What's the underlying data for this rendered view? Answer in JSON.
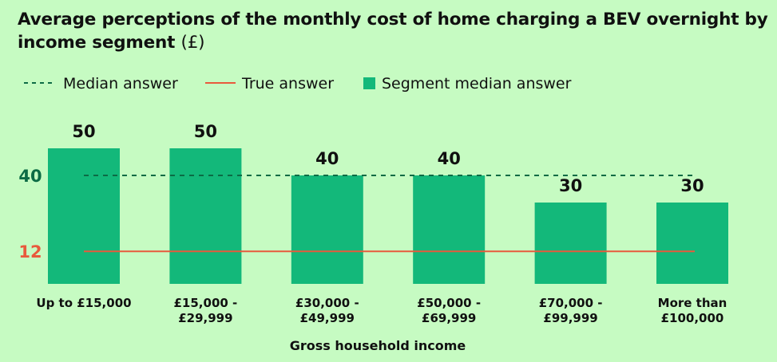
{
  "title": "Average perceptions of the monthly cost of home charging a BEV overnight by income segment",
  "title_unit": "(£)",
  "legend": {
    "median_label": "Median answer",
    "true_label": "True answer",
    "segment_label": "Segment median answer"
  },
  "colors": {
    "background": "#c6fbc2",
    "bar": "#13b87a",
    "median_line": "#0c6b45",
    "true_line": "#e85a3c",
    "text": "#101010"
  },
  "chart_data": {
    "type": "bar",
    "title": "Average perceptions of the monthly cost of home charging a BEV overnight by income segment (£)",
    "xlabel": "Gross household income",
    "ylabel": "",
    "categories": [
      [
        "Up to £15,000"
      ],
      [
        "£15,000 -",
        "£29,999"
      ],
      [
        "£30,000 -",
        "£49,999"
      ],
      [
        "£50,000 -",
        "£69,999"
      ],
      [
        "£70,000 -",
        "£99,999"
      ],
      [
        "More than",
        "£100,000"
      ]
    ],
    "series": [
      {
        "name": "Segment median answer",
        "values": [
          50,
          50,
          40,
          40,
          30,
          30
        ]
      }
    ],
    "reference_lines": [
      {
        "name": "Median answer",
        "value": 40,
        "style": "dashed"
      },
      {
        "name": "True answer",
        "value": 12,
        "style": "solid"
      }
    ],
    "ylim": [
      0,
      50
    ],
    "grid": false,
    "legend_position": "top-left"
  }
}
